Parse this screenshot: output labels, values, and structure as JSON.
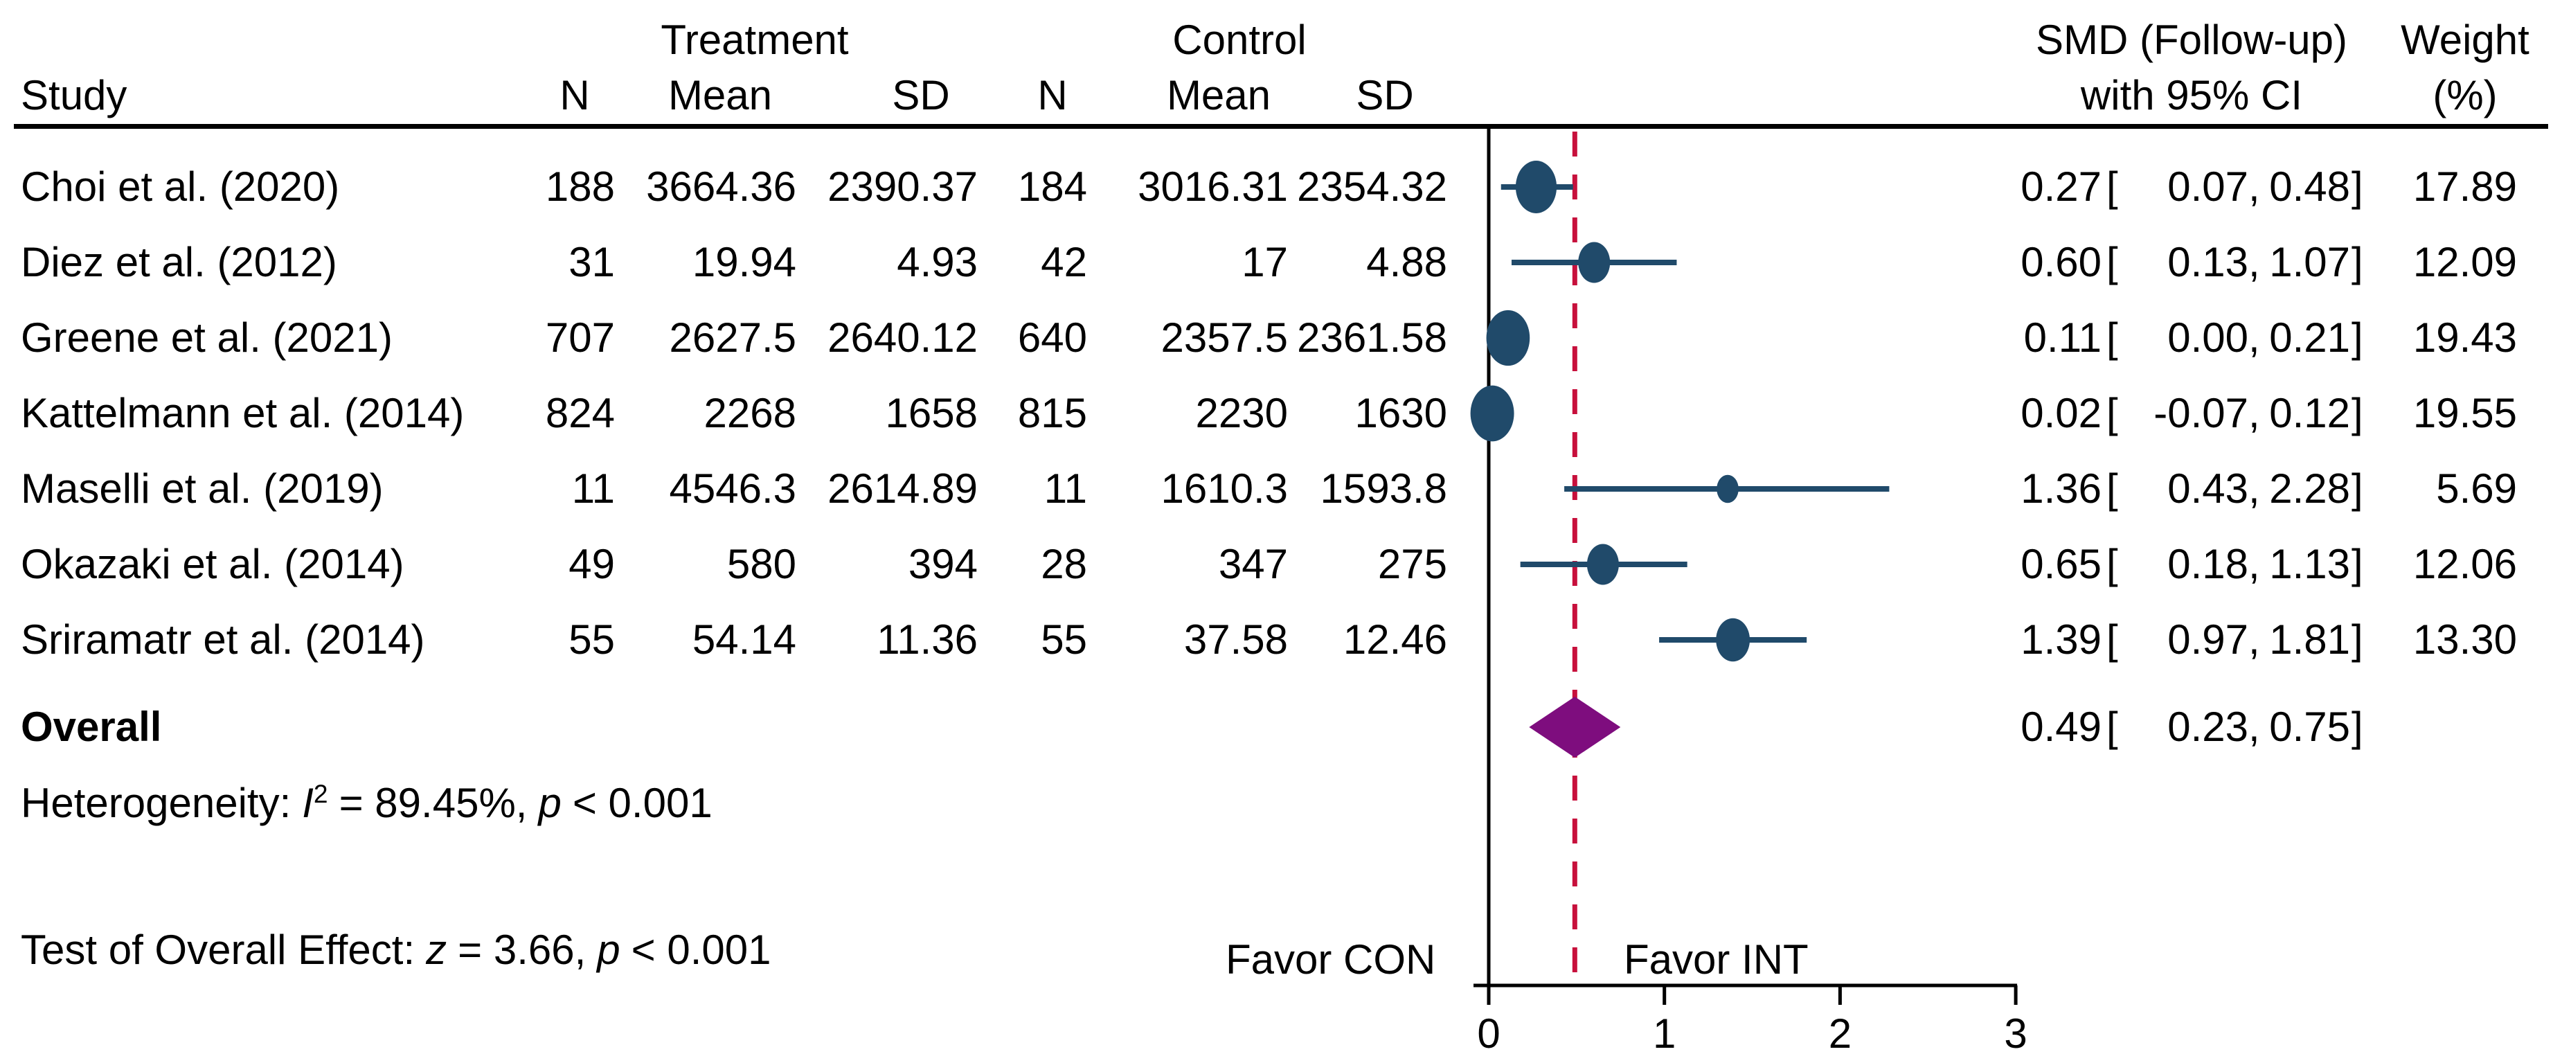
{
  "figure": {
    "header": {
      "study": "Study",
      "treatment_group": "Treatment",
      "control_group": "Control",
      "n": "N",
      "mean": "Mean",
      "sd": "SD",
      "smd_line1": "SMD (Follow-up)",
      "smd_line2": "with 95% CI",
      "weight_line1": "Weight",
      "weight_line2": "(%)"
    },
    "punct": {
      "open": "[",
      "sep": ",",
      "close": "]"
    },
    "stats": {
      "heterogeneity": {
        "label": "Heterogeneity:",
        "stat": "I",
        "sup": "2",
        "value": "= 89.45%,",
        "p": "p",
        "p_value": "< 0.001"
      },
      "overall_test": {
        "label": "Test of Overall Effect:",
        "stat": "z",
        "value": "= 3.66,",
        "p": "p",
        "p_value": "< 0.001"
      }
    }
  },
  "chart_data": {
    "type": "scatter",
    "variant": "forest-plot",
    "xlabel": "SMD (Follow-up) with 95% CI",
    "x_ticks": [
      "0",
      "1",
      "2",
      "3"
    ],
    "xlim": [
      -0.09,
      3.0
    ],
    "grid": false,
    "favor_left": "Favor CON",
    "favor_right": "Favor INT",
    "zero_line_x": 0,
    "overall_dashed_x": 0.49,
    "colors": {
      "marker": "#204A6A",
      "ci_line": "#204A6A",
      "dashed_line": "#C7103C",
      "diamond": "#7E0D7E",
      "axis": "#000000"
    },
    "studies": [
      {
        "name": "Choi et al. (2020)",
        "n1": "188",
        "mean1": "3664.36",
        "sd1": "2390.37",
        "n2": "184",
        "mean2": "3016.31",
        "sd2": "2354.32",
        "est": "0.27",
        "lo": "0.07",
        "hi": "0.48",
        "weight": "17.89"
      },
      {
        "name": "Diez et al. (2012)",
        "n1": "31",
        "mean1": "19.94",
        "sd1": "4.93",
        "n2": "42",
        "mean2": "17",
        "sd2": "4.88",
        "est": "0.60",
        "lo": "0.13",
        "hi": "1.07",
        "weight": "12.09"
      },
      {
        "name": "Greene et al. (2021)",
        "n1": "707",
        "mean1": "2627.5",
        "sd1": "2640.12",
        "n2": "640",
        "mean2": "2357.5",
        "sd2": "2361.58",
        "est": "0.11",
        "lo": "0.00",
        "hi": "0.21",
        "weight": "19.43"
      },
      {
        "name": "Kattelmann et al. (2014)",
        "n1": "824",
        "mean1": "2268",
        "sd1": "1658",
        "n2": "815",
        "mean2": "2230",
        "sd2": "1630",
        "est": "0.02",
        "lo": "-0.07",
        "hi": "0.12",
        "weight": "19.55"
      },
      {
        "name": "Maselli et al. (2019)",
        "n1": "11",
        "mean1": "4546.3",
        "sd1": "2614.89",
        "n2": "11",
        "mean2": "1610.3",
        "sd2": "1593.8",
        "est": "1.36",
        "lo": "0.43",
        "hi": "2.28",
        "weight": "5.69"
      },
      {
        "name": "Okazaki et al. (2014)",
        "n1": "49",
        "mean1": "580",
        "sd1": "394",
        "n2": "28",
        "mean2": "347",
        "sd2": "275",
        "est": "0.65",
        "lo": "0.18",
        "hi": "1.13",
        "weight": "12.06"
      },
      {
        "name": "Sriramatr et al. (2014)",
        "n1": "55",
        "mean1": "54.14",
        "sd1": "11.36",
        "n2": "55",
        "mean2": "37.58",
        "sd2": "12.46",
        "est": "1.39",
        "lo": "0.97",
        "hi": "1.81",
        "weight": "13.30"
      }
    ],
    "overall": {
      "name": "Overall",
      "est": "0.49",
      "lo": "0.23",
      "hi": "0.75"
    }
  }
}
